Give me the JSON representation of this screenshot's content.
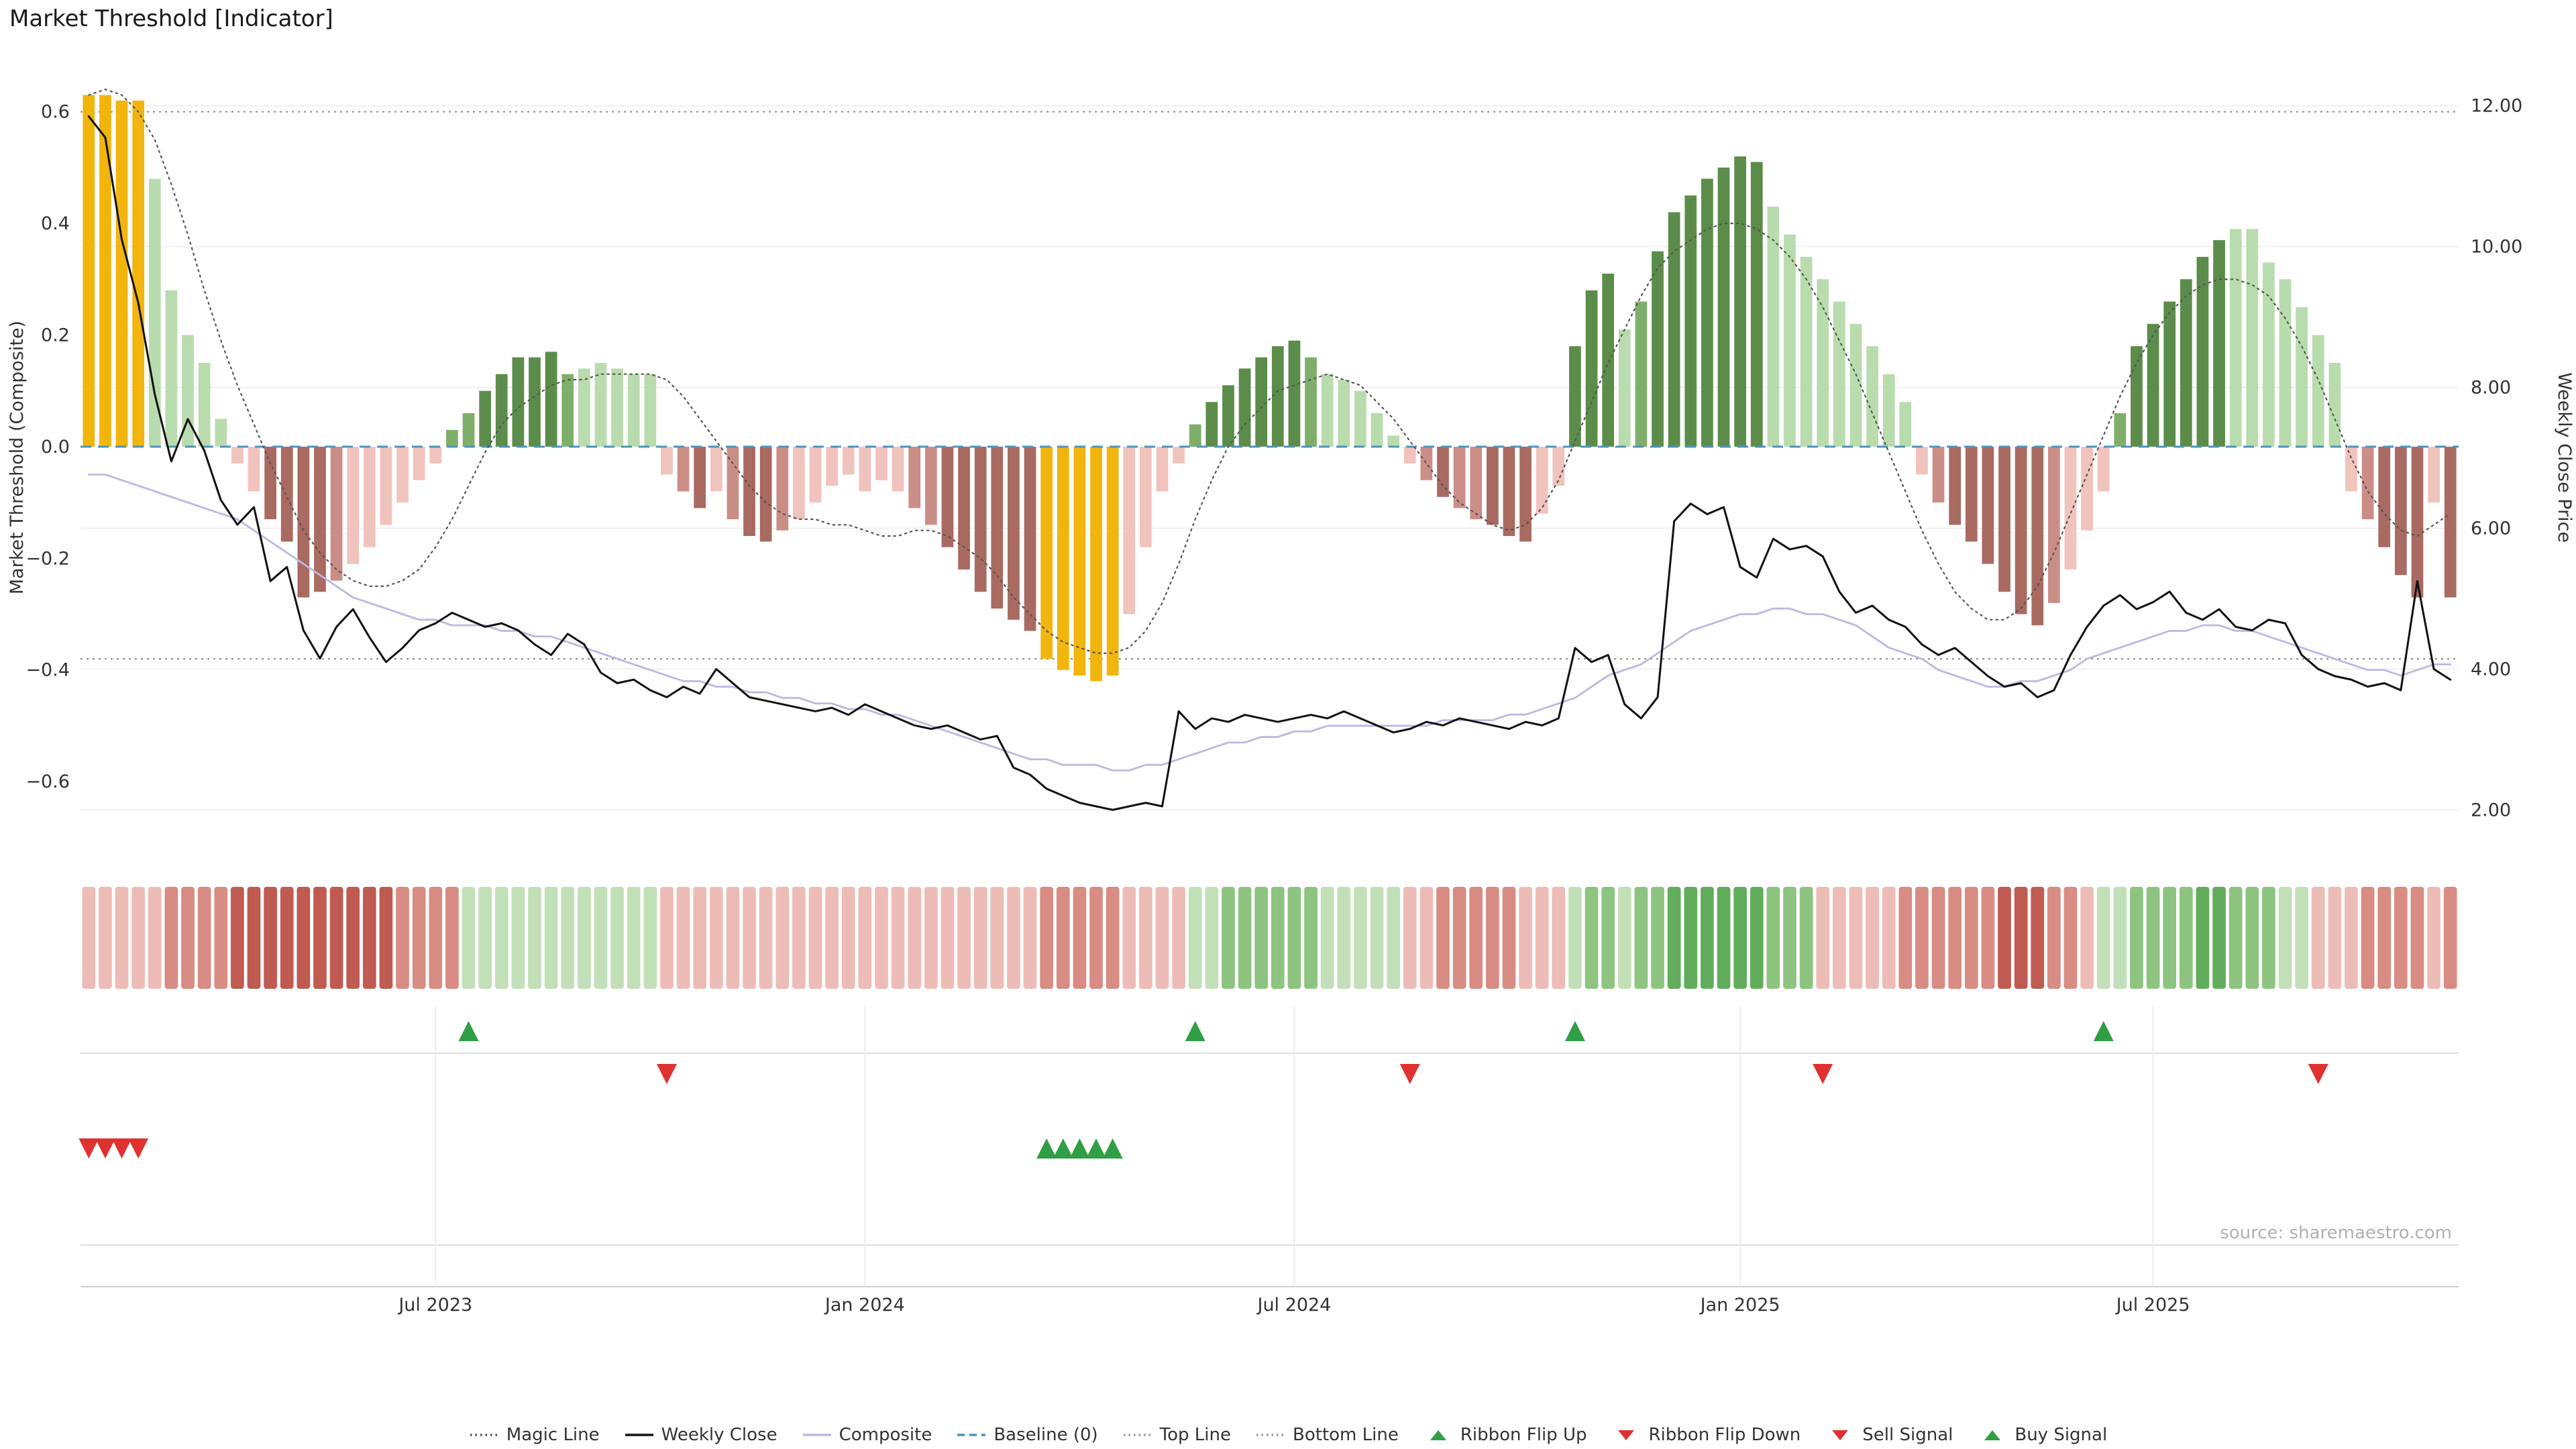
{
  "header": {
    "title": "Market Threshold [Indicator]"
  },
  "source_note": "source: sharemaestro.com",
  "legend": {
    "items": [
      {
        "label": "Magic Line",
        "marker": "dotted-line",
        "color": "#555555"
      },
      {
        "label": "Weekly Close",
        "marker": "solid-line",
        "color": "#111111"
      },
      {
        "label": "Composite",
        "marker": "solid-line",
        "color": "#b9b9e2"
      },
      {
        "label": "Baseline (0)",
        "marker": "dashed-line",
        "color": "#4d94b8"
      },
      {
        "label": "Top Line",
        "marker": "dotted-line",
        "color": "#999999"
      },
      {
        "label": "Bottom Line",
        "marker": "dotted-line",
        "color": "#999999"
      },
      {
        "label": "Ribbon Flip Up",
        "marker": "triangle-up",
        "color": "#2f9e44"
      },
      {
        "label": "Ribbon Flip Down",
        "marker": "triangle-down",
        "color": "#e03131"
      },
      {
        "label": "Sell Signal",
        "marker": "triangle-down",
        "color": "#e03131"
      },
      {
        "label": "Buy Signal",
        "marker": "triangle-up",
        "color": "#2f9e44"
      }
    ]
  },
  "chart_data": {
    "type": "bar",
    "subtype": "weekly composite histogram with line overlays, state ribbon and signal markers",
    "title": "Market Threshold [Indicator]",
    "x_ticks": [
      {
        "label": "Jul 2023",
        "index": 21
      },
      {
        "label": "Jan 2024",
        "index": 47
      },
      {
        "label": "Jul 2024",
        "index": 73
      },
      {
        "label": "Jan 2025",
        "index": 100
      },
      {
        "label": "Jul 2025",
        "index": 125
      }
    ],
    "left_axis": {
      "label": "Market Threshold (Composite)",
      "ticks": [
        0.6,
        0.4,
        0.2,
        0.0,
        -0.2,
        -0.4,
        -0.6
      ],
      "tick_labels": [
        "0.6",
        "0.4",
        "0.2",
        "0.0",
        "−0.2",
        "−0.4",
        "−0.6"
      ],
      "range": [
        -0.72,
        0.68
      ]
    },
    "right_axis": {
      "label": "Weekly Close Price",
      "ticks": [
        12,
        10,
        8,
        6,
        4,
        2
      ],
      "tick_labels": [
        "12.00",
        "10.00",
        "8.00",
        "6.00",
        "4.00",
        "2.00"
      ],
      "range": [
        1.45,
        12.55
      ]
    },
    "top_line": 0.6,
    "bottom_line": -0.38,
    "baseline": 0,
    "palette": {
      "gold": "#f2b50d",
      "dg": "#5c8c4a",
      "g": "#7fae6b",
      "lg": "#b9dcae",
      "lp": "#f1c3bd",
      "mr": "#cb8e87",
      "dr": "#a96a62"
    },
    "ribbon_palette": {
      "-3": "#c05b52",
      "-2": "#d88c84",
      "-1": "#eebcb6",
      "1": "#c2e0b8",
      "2": "#8dc480",
      "3": "#61ad5b"
    },
    "signal_colors": {
      "up": "#2f9e44",
      "down": "#e03131"
    },
    "bars": {
      "values": [
        0.63,
        0.63,
        0.62,
        0.62,
        0.48,
        0.28,
        0.2,
        0.15,
        0.05,
        -0.03,
        -0.08,
        -0.13,
        -0.17,
        -0.27,
        -0.26,
        -0.24,
        -0.21,
        -0.18,
        -0.14,
        -0.1,
        -0.06,
        -0.03,
        0.03,
        0.06,
        0.1,
        0.13,
        0.16,
        0.16,
        0.17,
        0.13,
        0.14,
        0.15,
        0.14,
        0.13,
        0.13,
        -0.05,
        -0.08,
        -0.11,
        -0.08,
        -0.13,
        -0.16,
        -0.17,
        -0.15,
        -0.13,
        -0.1,
        -0.07,
        -0.05,
        -0.08,
        -0.06,
        -0.08,
        -0.11,
        -0.14,
        -0.18,
        -0.22,
        -0.26,
        -0.29,
        -0.31,
        -0.33,
        -0.38,
        -0.4,
        -0.41,
        -0.42,
        -0.41,
        -0.3,
        -0.18,
        -0.08,
        -0.03,
        0.04,
        0.08,
        0.11,
        0.14,
        0.16,
        0.18,
        0.19,
        0.16,
        0.13,
        0.12,
        0.1,
        0.06,
        0.02,
        -0.03,
        -0.06,
        -0.09,
        -0.11,
        -0.13,
        -0.14,
        -0.16,
        -0.17,
        -0.12,
        -0.07,
        0.18,
        0.28,
        0.31,
        0.21,
        0.26,
        0.35,
        0.42,
        0.45,
        0.48,
        0.5,
        0.52,
        0.51,
        0.43,
        0.38,
        0.34,
        0.3,
        0.26,
        0.22,
        0.18,
        0.13,
        0.08,
        -0.05,
        -0.1,
        -0.14,
        -0.17,
        -0.21,
        -0.26,
        -0.3,
        -0.32,
        -0.28,
        -0.22,
        -0.15,
        -0.08,
        0.06,
        0.18,
        0.22,
        0.26,
        0.3,
        0.34,
        0.37,
        0.39,
        0.39,
        0.33,
        0.3,
        0.25,
        0.2,
        0.15,
        -0.08,
        -0.13,
        -0.18,
        -0.23,
        -0.27,
        -0.1,
        -0.27
      ],
      "colors": [
        "gold",
        "gold",
        "gold",
        "gold",
        "lg",
        "lg",
        "lg",
        "lg",
        "lg",
        "lp",
        "lp",
        "dr",
        "dr",
        "dr",
        "dr",
        "mr",
        "lp",
        "lp",
        "lp",
        "lp",
        "lp",
        "lp",
        "g",
        "g",
        "dg",
        "dg",
        "dg",
        "dg",
        "dg",
        "g",
        "lg",
        "lg",
        "lg",
        "lg",
        "lg",
        "lp",
        "mr",
        "dr",
        "lp",
        "mr",
        "dr",
        "dr",
        "mr",
        "lp",
        "lp",
        "lp",
        "lp",
        "lp",
        "lp",
        "lp",
        "mr",
        "mr",
        "dr",
        "dr",
        "dr",
        "dr",
        "dr",
        "dr",
        "gold",
        "gold",
        "gold",
        "gold",
        "gold",
        "lp",
        "lp",
        "lp",
        "lp",
        "g",
        "dg",
        "dg",
        "dg",
        "dg",
        "dg",
        "dg",
        "g",
        "lg",
        "lg",
        "lg",
        "lg",
        "lg",
        "lp",
        "mr",
        "dr",
        "mr",
        "mr",
        "dr",
        "dr",
        "dr",
        "lp",
        "lp",
        "dg",
        "dg",
        "dg",
        "lg",
        "g",
        "dg",
        "dg",
        "dg",
        "dg",
        "dg",
        "dg",
        "dg",
        "lg",
        "lg",
        "lg",
        "lg",
        "lg",
        "lg",
        "lg",
        "lg",
        "lg",
        "lp",
        "mr",
        "dr",
        "dr",
        "dr",
        "dr",
        "dr",
        "dr",
        "mr",
        "lp",
        "lp",
        "lp",
        "g",
        "dg",
        "dg",
        "dg",
        "dg",
        "dg",
        "dg",
        "lg",
        "lg",
        "lg",
        "lg",
        "lg",
        "lg",
        "lg",
        "lp",
        "mr",
        "dr",
        "dr",
        "dr",
        "lp",
        "dr"
      ]
    },
    "series": {
      "weekly_close": {
        "name": "Weekly Close",
        "axis": "right",
        "values": [
          11.85,
          11.55,
          10.1,
          9.2,
          7.9,
          6.95,
          7.55,
          7.1,
          6.4,
          6.05,
          6.3,
          5.25,
          5.45,
          4.55,
          4.15,
          4.6,
          4.85,
          4.45,
          4.1,
          4.3,
          4.55,
          4.65,
          4.8,
          4.7,
          4.6,
          4.65,
          4.55,
          4.35,
          4.2,
          4.5,
          4.35,
          3.95,
          3.8,
          3.85,
          3.7,
          3.6,
          3.75,
          3.65,
          4.0,
          3.8,
          3.6,
          3.55,
          3.5,
          3.45,
          3.4,
          3.45,
          3.35,
          3.5,
          3.4,
          3.3,
          3.2,
          3.15,
          3.2,
          3.1,
          3.0,
          3.05,
          2.6,
          2.5,
          2.3,
          2.2,
          2.1,
          2.05,
          2.0,
          2.05,
          2.1,
          2.05,
          3.4,
          3.15,
          3.3,
          3.25,
          3.35,
          3.3,
          3.25,
          3.3,
          3.35,
          3.3,
          3.4,
          3.3,
          3.2,
          3.1,
          3.15,
          3.25,
          3.2,
          3.3,
          3.25,
          3.2,
          3.15,
          3.25,
          3.2,
          3.3,
          4.3,
          4.1,
          4.2,
          3.5,
          3.3,
          3.6,
          6.1,
          6.35,
          6.2,
          6.3,
          5.45,
          5.3,
          5.85,
          5.7,
          5.75,
          5.6,
          5.1,
          4.8,
          4.9,
          4.7,
          4.6,
          4.35,
          4.2,
          4.3,
          4.1,
          3.9,
          3.75,
          3.8,
          3.6,
          3.7,
          4.2,
          4.6,
          4.9,
          5.05,
          4.85,
          4.95,
          5.1,
          4.8,
          4.7,
          4.85,
          4.6,
          4.55,
          4.7,
          4.65,
          4.2,
          4.0,
          3.9,
          3.85,
          3.75,
          3.8,
          3.7,
          5.25,
          4.0,
          3.85
        ]
      },
      "composite": {
        "name": "Composite",
        "axis": "left",
        "values": [
          -0.05,
          -0.05,
          -0.06,
          -0.07,
          -0.08,
          -0.09,
          -0.1,
          -0.11,
          -0.12,
          -0.13,
          -0.15,
          -0.17,
          -0.19,
          -0.21,
          -0.23,
          -0.25,
          -0.27,
          -0.28,
          -0.29,
          -0.3,
          -0.31,
          -0.31,
          -0.32,
          -0.32,
          -0.32,
          -0.33,
          -0.33,
          -0.34,
          -0.34,
          -0.35,
          -0.36,
          -0.37,
          -0.38,
          -0.39,
          -0.4,
          -0.41,
          -0.42,
          -0.42,
          -0.43,
          -0.43,
          -0.44,
          -0.44,
          -0.45,
          -0.45,
          -0.46,
          -0.46,
          -0.47,
          -0.47,
          -0.48,
          -0.48,
          -0.49,
          -0.5,
          -0.51,
          -0.52,
          -0.53,
          -0.54,
          -0.55,
          -0.56,
          -0.56,
          -0.57,
          -0.57,
          -0.57,
          -0.58,
          -0.58,
          -0.57,
          -0.57,
          -0.56,
          -0.55,
          -0.54,
          -0.53,
          -0.53,
          -0.52,
          -0.52,
          -0.51,
          -0.51,
          -0.5,
          -0.5,
          -0.5,
          -0.5,
          -0.5,
          -0.5,
          -0.5,
          -0.49,
          -0.49,
          -0.49,
          -0.49,
          -0.48,
          -0.48,
          -0.47,
          -0.46,
          -0.45,
          -0.43,
          -0.41,
          -0.4,
          -0.39,
          -0.37,
          -0.35,
          -0.33,
          -0.32,
          -0.31,
          -0.3,
          -0.3,
          -0.29,
          -0.29,
          -0.3,
          -0.3,
          -0.31,
          -0.32,
          -0.34,
          -0.36,
          -0.37,
          -0.38,
          -0.4,
          -0.41,
          -0.42,
          -0.43,
          -0.43,
          -0.42,
          -0.42,
          -0.41,
          -0.4,
          -0.38,
          -0.37,
          -0.36,
          -0.35,
          -0.34,
          -0.33,
          -0.33,
          -0.32,
          -0.32,
          -0.33,
          -0.33,
          -0.34,
          -0.35,
          -0.36,
          -0.37,
          -0.38,
          -0.39,
          -0.4,
          -0.4,
          -0.41,
          -0.4,
          -0.39,
          -0.39
        ]
      },
      "magic_line": {
        "name": "Magic Line",
        "axis": "left",
        "values": [
          0.63,
          0.64,
          0.63,
          0.6,
          0.55,
          0.47,
          0.38,
          0.28,
          0.19,
          0.11,
          0.04,
          -0.03,
          -0.09,
          -0.15,
          -0.19,
          -0.22,
          -0.24,
          -0.25,
          -0.25,
          -0.24,
          -0.22,
          -0.18,
          -0.13,
          -0.07,
          -0.01,
          0.04,
          0.07,
          0.09,
          0.11,
          0.12,
          0.12,
          0.13,
          0.13,
          0.13,
          0.13,
          0.12,
          0.09,
          0.05,
          0.01,
          -0.03,
          -0.07,
          -0.1,
          -0.12,
          -0.13,
          -0.13,
          -0.14,
          -0.14,
          -0.15,
          -0.16,
          -0.16,
          -0.15,
          -0.15,
          -0.16,
          -0.18,
          -0.2,
          -0.23,
          -0.27,
          -0.3,
          -0.33,
          -0.35,
          -0.36,
          -0.37,
          -0.37,
          -0.36,
          -0.33,
          -0.28,
          -0.21,
          -0.13,
          -0.06,
          0.0,
          0.04,
          0.07,
          0.1,
          0.11,
          0.12,
          0.13,
          0.12,
          0.11,
          0.08,
          0.05,
          0.01,
          -0.03,
          -0.07,
          -0.1,
          -0.12,
          -0.14,
          -0.15,
          -0.14,
          -0.11,
          -0.06,
          0.01,
          0.08,
          0.15,
          0.21,
          0.27,
          0.32,
          0.35,
          0.37,
          0.39,
          0.4,
          0.4,
          0.39,
          0.37,
          0.34,
          0.3,
          0.25,
          0.19,
          0.13,
          0.06,
          -0.01,
          -0.08,
          -0.15,
          -0.21,
          -0.26,
          -0.29,
          -0.31,
          -0.31,
          -0.29,
          -0.25,
          -0.19,
          -0.12,
          -0.05,
          0.02,
          0.09,
          0.15,
          0.2,
          0.24,
          0.27,
          0.29,
          0.3,
          0.3,
          0.29,
          0.27,
          0.23,
          0.18,
          0.12,
          0.05,
          -0.02,
          -0.08,
          -0.12,
          -0.15,
          -0.16,
          -0.14,
          -0.12
        ]
      }
    },
    "ribbon": [
      -1,
      -1,
      -1,
      -1,
      -1,
      -2,
      -2,
      -2,
      -2,
      -3,
      -3,
      -3,
      -3,
      -3,
      -3,
      -3,
      -3,
      -3,
      -3,
      -2,
      -2,
      -2,
      -2,
      1,
      1,
      1,
      1,
      1,
      1,
      1,
      1,
      1,
      1,
      1,
      1,
      -1,
      -1,
      -1,
      -1,
      -1,
      -1,
      -1,
      -1,
      -1,
      -1,
      -1,
      -1,
      -1,
      -1,
      -1,
      -1,
      -1,
      -1,
      -1,
      -1,
      -1,
      -1,
      -1,
      -2,
      -2,
      -2,
      -2,
      -2,
      -1,
      -1,
      -1,
      -1,
      1,
      1,
      2,
      2,
      2,
      2,
      2,
      2,
      1,
      1,
      1,
      1,
      1,
      -1,
      -1,
      -2,
      -2,
      -2,
      -2,
      -2,
      -1,
      -1,
      -1,
      1,
      2,
      2,
      1,
      2,
      2,
      3,
      3,
      3,
      3,
      3,
      3,
      2,
      2,
      2,
      -1,
      -1,
      -1,
      -1,
      -1,
      -2,
      -2,
      -2,
      -2,
      -2,
      -2,
      -3,
      -3,
      -3,
      -2,
      -2,
      -1,
      1,
      1,
      2,
      2,
      2,
      2,
      3,
      3,
      2,
      2,
      2,
      1,
      1,
      -1,
      -1,
      -1,
      -2,
      -2,
      -2,
      -2,
      -1,
      -2
    ],
    "signals": {
      "ribbon_flip_up": [
        23,
        67,
        90,
        122
      ],
      "ribbon_flip_down": [
        35,
        80,
        105,
        135
      ],
      "sell": [
        0,
        1,
        2,
        3
      ],
      "buy": [
        58,
        59,
        60,
        61,
        62
      ]
    }
  }
}
